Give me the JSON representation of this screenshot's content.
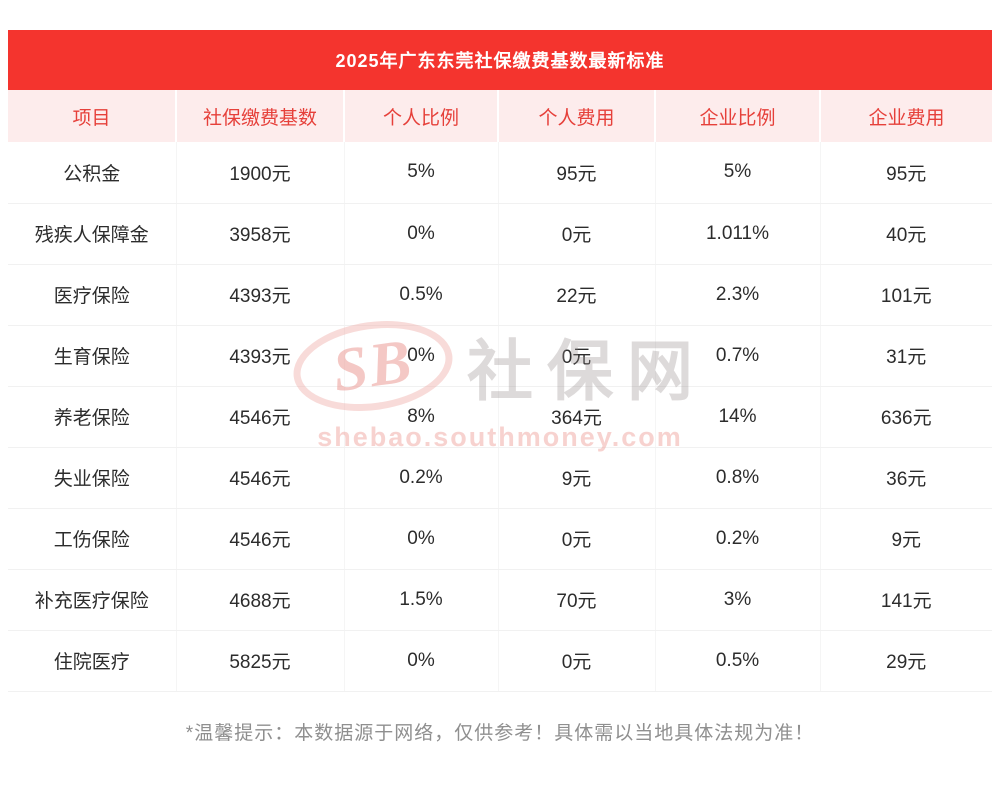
{
  "chart_data": {
    "type": "table",
    "title": "2025年广东东莞社保缴费基数最新标准",
    "columns": [
      "项目",
      "社保缴费基数",
      "个人比例",
      "个人费用",
      "企业比例",
      "企业费用"
    ],
    "rows": [
      [
        "公积金",
        "1900元",
        "5%",
        "95元",
        "5%",
        "95元"
      ],
      [
        "残疾人保障金",
        "3958元",
        "0%",
        "0元",
        "1.011%",
        "40元"
      ],
      [
        "医疗保险",
        "4393元",
        "0.5%",
        "22元",
        "2.3%",
        "101元"
      ],
      [
        "生育保险",
        "4393元",
        "0%",
        "0元",
        "0.7%",
        "31元"
      ],
      [
        "养老保险",
        "4546元",
        "8%",
        "364元",
        "14%",
        "636元"
      ],
      [
        "失业保险",
        "4546元",
        "0.2%",
        "9元",
        "0.8%",
        "36元"
      ],
      [
        "工伤保险",
        "4546元",
        "0%",
        "0元",
        "0.2%",
        "9元"
      ],
      [
        "补充医疗保险",
        "4688元",
        "1.5%",
        "70元",
        "3%",
        "141元"
      ],
      [
        "住院医疗",
        "5825元",
        "0%",
        "0元",
        "0.5%",
        "29元"
      ]
    ]
  },
  "footer_note": "*温馨提示：本数据源于网络，仅供参考！具体需以当地具体法规为准！",
  "watermark": {
    "logo_text": "SB",
    "site_name": "社保网",
    "site_url": "shebao.southmoney.com"
  },
  "colors": {
    "header_bg": "#f4342e",
    "header_text": "#ffffff",
    "table_header_bg": "#fdecec",
    "table_header_text": "#e6403a",
    "body_text": "#2c2c2c",
    "row_border": "#f1f1f1",
    "col_border": "#f5f5f5",
    "note_text": "#8f8f8f"
  }
}
